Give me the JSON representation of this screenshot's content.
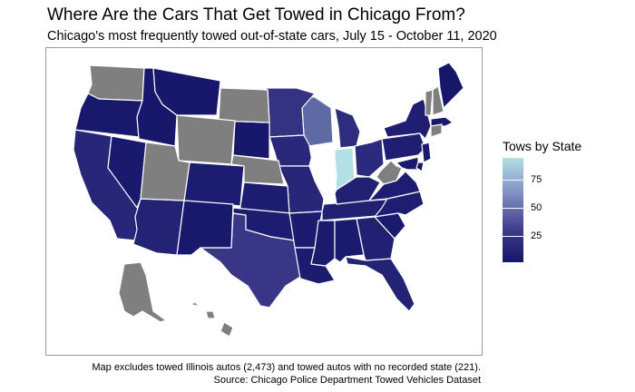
{
  "title": "Where Are the Cars That Get Towed in Chicago From?",
  "subtitle": "Chicago's most frequently towed out-of-state cars, July 15 - October 11, 2020",
  "legend": {
    "title": "Tows by State",
    "ticks": [
      {
        "label": "75",
        "value": 75
      },
      {
        "label": "50",
        "value": 50
      },
      {
        "label": "25",
        "value": 25
      }
    ],
    "range": [
      1,
      95
    ]
  },
  "caption": {
    "line1": "Map excludes towed Illinois autos (2,473) and towed autos with no recorded state (221).",
    "line2": "Source: Chicago Police Department Towed Vehicles Dataset"
  },
  "colors": {
    "low": "#15156a",
    "mid": "#3d3a8a",
    "high": "#b3e0e6",
    "no_data": "#7f7f7f",
    "excluded": "#ffffff",
    "border": "#ffffff"
  },
  "map_data": {
    "type": "choropleth",
    "states": [
      {
        "state": "Indiana",
        "tows": 95
      },
      {
        "state": "Wisconsin",
        "tows": 55
      },
      {
        "state": "Texas",
        "tows": 35
      },
      {
        "state": "Minnesota",
        "tows": 30
      },
      {
        "state": "Michigan",
        "tows": 24
      },
      {
        "state": "Ohio",
        "tows": 22
      },
      {
        "state": "Iowa",
        "tows": 20
      },
      {
        "state": "Missouri",
        "tows": 18
      },
      {
        "state": "California",
        "tows": 18
      },
      {
        "state": "Arizona",
        "tows": 14
      },
      {
        "state": "Florida",
        "tows": 14
      },
      {
        "state": "Georgia",
        "tows": 12
      },
      {
        "state": "Tennessee",
        "tows": 12
      },
      {
        "state": "Kentucky",
        "tows": 12
      },
      {
        "state": "New York",
        "tows": 10
      },
      {
        "state": "Pennsylvania",
        "tows": 10
      },
      {
        "state": "North Carolina",
        "tows": 9
      },
      {
        "state": "Virginia",
        "tows": 9
      },
      {
        "state": "Colorado",
        "tows": 8
      },
      {
        "state": "Kansas",
        "tows": 8
      },
      {
        "state": "Oklahoma",
        "tows": 8
      },
      {
        "state": "Arkansas",
        "tows": 7
      },
      {
        "state": "Louisiana",
        "tows": 7
      },
      {
        "state": "Mississippi",
        "tows": 6
      },
      {
        "state": "Alabama",
        "tows": 6
      },
      {
        "state": "South Carolina",
        "tows": 6
      },
      {
        "state": "New Jersey",
        "tows": 6
      },
      {
        "state": "Massachusetts",
        "tows": 5
      },
      {
        "state": "Maryland",
        "tows": 5
      },
      {
        "state": "Nevada",
        "tows": 5
      },
      {
        "state": "New Mexico",
        "tows": 4
      },
      {
        "state": "Washington",
        "tows": null
      },
      {
        "state": "Oregon",
        "tows": 4
      },
      {
        "state": "Idaho",
        "tows": 3
      },
      {
        "state": "Montana",
        "tows": 3
      },
      {
        "state": "South Dakota",
        "tows": 3
      },
      {
        "state": "North Dakota",
        "tows": null
      },
      {
        "state": "Wyoming",
        "tows": null
      },
      {
        "state": "Nebraska",
        "tows": null
      },
      {
        "state": "Utah",
        "tows": null
      },
      {
        "state": "West Virginia",
        "tows": null
      },
      {
        "state": "Vermont",
        "tows": null
      },
      {
        "state": "New Hampshire",
        "tows": null
      },
      {
        "state": "Connecticut",
        "tows": null
      },
      {
        "state": "Maine",
        "tows": 2
      },
      {
        "state": "Delaware",
        "tows": 2
      },
      {
        "state": "Alaska",
        "tows": null
      },
      {
        "state": "Hawaii",
        "tows": null
      },
      {
        "state": "Illinois",
        "tows": "excluded"
      }
    ]
  }
}
